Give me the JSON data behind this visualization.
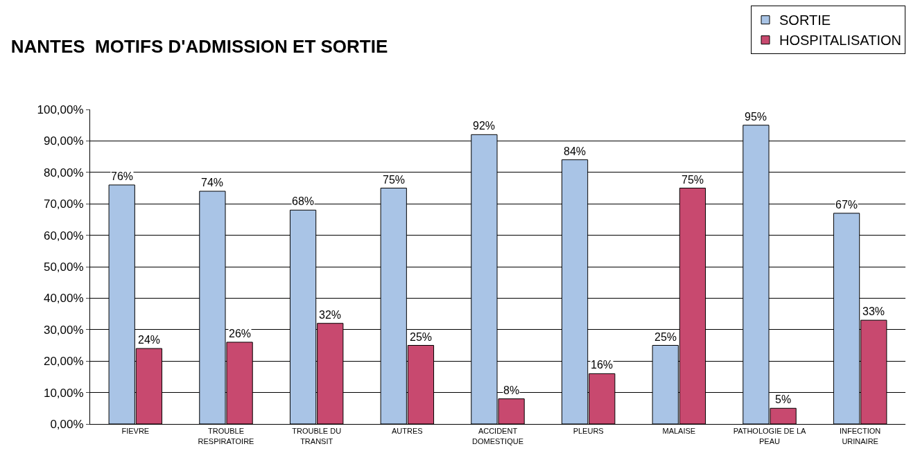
{
  "chart_data": {
    "type": "bar",
    "title": "NANTES  MOTIFS D'ADMISSION ET SORTIE",
    "categories": [
      "FIEVRE",
      "TROUBLE\nRESPIRATOIRE",
      "TROUBLE DU\nTRANSIT",
      "AUTRES",
      "ACCIDENT\nDOMESTIQUE",
      "PLEURS",
      "MALAISE",
      "PATHOLOGIE DE LA\nPEAU",
      "INFECTION\nURINAIRE"
    ],
    "series": [
      {
        "name": "SORTIE",
        "color": "#a9c4e6",
        "values": [
          76,
          74,
          68,
          75,
          92,
          84,
          25,
          95,
          67
        ],
        "value_labels": [
          "76%",
          "74%",
          "68%",
          "75%",
          "92%",
          "84%",
          "25%",
          "95%",
          "67%"
        ]
      },
      {
        "name": "HOSPITALISATION",
        "color": "#c8496f",
        "values": [
          24,
          26,
          32,
          25,
          8,
          16,
          75,
          5,
          33
        ],
        "value_labels": [
          "24%",
          "26%",
          "32%",
          "25%",
          "8%",
          "16%",
          "75%",
          "5%",
          "33%"
        ]
      }
    ],
    "ylim": [
      0,
      100
    ],
    "yticks": [
      {
        "value": 0,
        "label": "0,00%"
      },
      {
        "value": 10,
        "label": "10,00%"
      },
      {
        "value": 20,
        "label": "20,00%"
      },
      {
        "value": 30,
        "label": "30,00%"
      },
      {
        "value": 40,
        "label": "40,00%"
      },
      {
        "value": 50,
        "label": "50,00%"
      },
      {
        "value": 60,
        "label": "60,00%"
      },
      {
        "value": 70,
        "label": "70,00%"
      },
      {
        "value": 80,
        "label": "80,00%"
      },
      {
        "value": 90,
        "label": "90,00%"
      },
      {
        "value": 100,
        "label": "100,00%"
      }
    ],
    "grid": "y",
    "legend": "top right"
  }
}
